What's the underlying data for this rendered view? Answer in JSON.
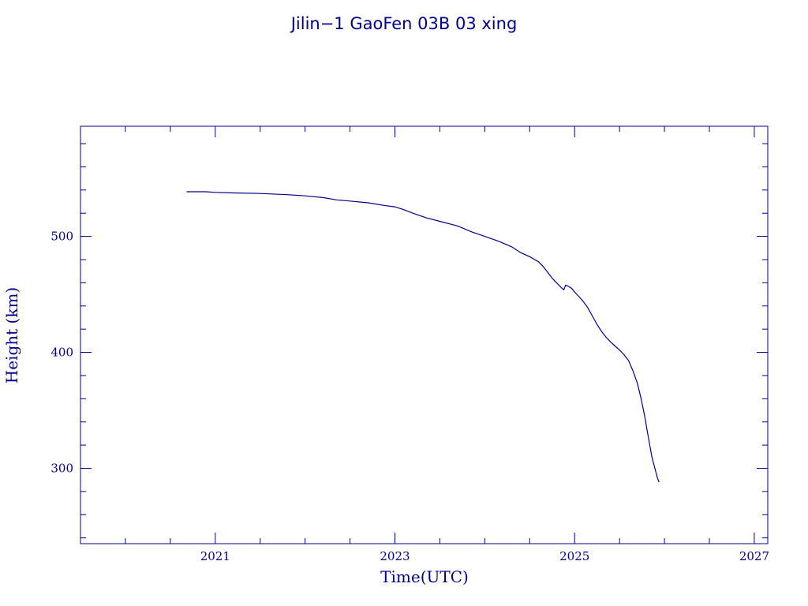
{
  "chart_data": {
    "type": "line",
    "title": "Jilin−1 GaoFen 03B 03 xing",
    "xlabel": "Time(UTC)",
    "ylabel": "Height (km)",
    "xlim": [
      2019.5,
      2027.15
    ],
    "ylim": [
      235,
      595
    ],
    "xticks": [
      2021,
      2023,
      2025,
      2027
    ],
    "yticks": [
      300,
      400,
      500
    ],
    "color": "#00008b",
    "grid": false,
    "series": [
      {
        "x": [
          2020.68,
          2020.9,
          2021.0,
          2021.2,
          2021.5,
          2021.8,
          2022.0,
          2022.2,
          2022.35,
          2022.5,
          2022.7,
          2022.9,
          2023.0,
          2023.1,
          2023.2,
          2023.35,
          2023.5,
          2023.7,
          2023.85,
          2024.0,
          2024.15,
          2024.3,
          2024.4,
          2024.5,
          2024.6,
          2024.65,
          2024.7,
          2024.75,
          2024.8,
          2024.85,
          2024.88,
          2024.9,
          2024.93,
          2024.97,
          2025.0,
          2025.05,
          2025.1,
          2025.15,
          2025.2,
          2025.25,
          2025.3,
          2025.35,
          2025.4,
          2025.45,
          2025.5,
          2025.55,
          2025.6,
          2025.65,
          2025.7,
          2025.74,
          2025.78,
          2025.82,
          2025.86,
          2025.9,
          2025.92,
          2025.94
        ],
        "y": [
          538.5,
          538.5,
          538,
          537.5,
          537,
          536,
          535,
          533.5,
          531.5,
          530.5,
          529,
          526.5,
          525.5,
          523,
          520,
          516,
          513,
          509,
          504,
          500,
          496,
          491,
          486,
          482.5,
          478,
          474,
          469,
          464,
          460,
          456,
          454,
          458,
          457,
          455,
          452,
          448,
          443.5,
          438,
          431,
          424,
          418,
          413,
          409,
          405.5,
          402,
          398,
          393,
          384,
          373,
          360,
          345,
          327,
          310,
          298,
          292,
          288
        ]
      }
    ]
  }
}
